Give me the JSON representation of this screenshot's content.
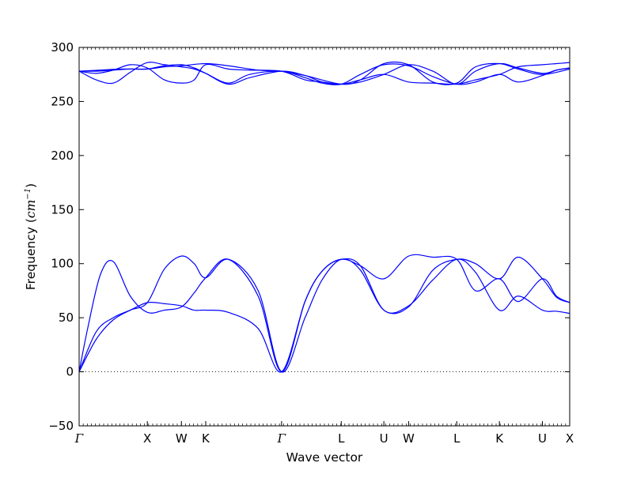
{
  "chart_data": {
    "type": "line",
    "title": "",
    "xlabel": "Wave vector",
    "ylabel": {
      "prefix": "Frequency (",
      "unit_base": "cm",
      "unit_exp": "−1",
      "suffix": ")"
    },
    "ylim": [
      -50,
      300
    ],
    "yticks": [
      -50,
      0,
      50,
      100,
      150,
      200,
      250,
      300
    ],
    "xlim": [
      0,
      11.51
    ],
    "xticks": [
      {
        "label": "Γ",
        "x": 0.0
      },
      {
        "label": "X",
        "x": 1.6
      },
      {
        "label": "W",
        "x": 2.4
      },
      {
        "label": "K",
        "x": 2.97
      },
      {
        "label": "Γ",
        "x": 4.75
      },
      {
        "label": "L",
        "x": 6.15
      },
      {
        "label": "U",
        "x": 7.15
      },
      {
        "label": "W",
        "x": 7.73
      },
      {
        "label": "L",
        "x": 8.86
      },
      {
        "label": "K",
        "x": 9.86
      },
      {
        "label": "U",
        "x": 10.87
      },
      {
        "label": "X",
        "x": 11.51
      }
    ],
    "zero_line": {
      "value": 0,
      "style": "dotted"
    },
    "grid": false,
    "legend": "none",
    "color": "#0000ff",
    "series": [
      {
        "x": [
          0,
          0.4,
          0.8,
          1.2,
          1.6,
          2.0,
          2.4,
          2.7,
          2.97,
          3.5,
          4.2,
          4.75,
          5.3,
          5.7,
          6.15,
          6.6,
          7.15,
          7.73,
          8.3,
          8.86,
          9.3,
          9.86,
          10.3,
          10.87,
          11.2,
          11.51
        ],
        "y": [
          0,
          37,
          50,
          57,
          64,
          63,
          61,
          57,
          57,
          55,
          40,
          0,
          65,
          93,
          104,
          98,
          86,
          107,
          106,
          104,
          75,
          86,
          65,
          86,
          70,
          64
        ]
      },
      {
        "x": [
          0,
          0.2,
          0.5,
          0.8,
          1.2,
          1.6,
          2.0,
          2.4,
          2.7,
          2.97,
          3.5,
          4.2,
          4.75,
          5.3,
          5.7,
          6.15,
          6.6,
          7.15,
          7.73,
          8.3,
          8.86,
          9.3,
          9.86,
          10.3,
          10.87,
          11.2,
          11.51
        ],
        "y": [
          0,
          40,
          90,
          102,
          70,
          55,
          57,
          60,
          73,
          87,
          104,
          70,
          0,
          65,
          93,
          104,
          98,
          57,
          61,
          85,
          104,
          92,
          57,
          70,
          57,
          56,
          54
        ]
      },
      {
        "x": [
          0,
          0.4,
          0.8,
          1.2,
          1.6,
          2.0,
          2.4,
          2.7,
          2.97,
          3.5,
          4.2,
          4.75,
          5.3,
          5.7,
          6.15,
          6.6,
          7.15,
          7.73,
          8.3,
          8.86,
          9.3,
          9.86,
          10.3,
          10.87,
          11.2,
          11.51
        ],
        "y": [
          0,
          30,
          48,
          57,
          64,
          95,
          107,
          100,
          87,
          104,
          75,
          0,
          50,
          85,
          104,
          94,
          57,
          60,
          94,
          104,
          100,
          86,
          106,
          86,
          69,
          64
        ]
      },
      {
        "x": [
          0,
          0.4,
          0.8,
          1.2,
          1.6,
          2.0,
          2.4,
          2.7,
          2.97,
          3.5,
          4.0,
          4.75,
          5.3,
          5.7,
          6.15,
          6.6,
          7.15,
          7.73,
          8.3,
          8.86,
          9.3,
          9.86,
          10.3,
          10.87,
          11.2,
          11.51
        ],
        "y": [
          278,
          278,
          279,
          280,
          280,
          283,
          284,
          281,
          276,
          266,
          272,
          278,
          274,
          268,
          266,
          270,
          275,
          268,
          267,
          266,
          270,
          275,
          282,
          284,
          285,
          286
        ]
      },
      {
        "x": [
          0,
          0.4,
          0.8,
          1.2,
          1.6,
          2.0,
          2.4,
          2.7,
          2.97,
          3.5,
          4.0,
          4.75,
          5.3,
          5.7,
          6.15,
          6.6,
          7.15,
          7.73,
          8.3,
          8.86,
          9.3,
          9.86,
          10.3,
          10.87,
          11.2,
          11.51
        ],
        "y": [
          278,
          270,
          267,
          277,
          286,
          284,
          282,
          280,
          276,
          267,
          275,
          278,
          272,
          267,
          266,
          275,
          284,
          283,
          273,
          266,
          268,
          275,
          268,
          274,
          279,
          281
        ]
      },
      {
        "x": [
          0,
          0.4,
          0.8,
          1.2,
          1.6,
          2.0,
          2.4,
          2.7,
          2.97,
          3.5,
          4.0,
          4.75,
          5.3,
          5.7,
          6.15,
          6.6,
          7.15,
          7.73,
          8.3,
          8.86,
          9.3,
          9.86,
          10.3,
          10.87,
          11.2,
          11.51
        ],
        "y": [
          278,
          276,
          279,
          284,
          281,
          270,
          267,
          270,
          284,
          280,
          279,
          278,
          270,
          268,
          266,
          268,
          275,
          284,
          278,
          266,
          278,
          285,
          281,
          276,
          279,
          281
        ]
      },
      {
        "x": [
          0,
          0.5,
          1.0,
          1.6,
          2.0,
          2.4,
          2.97,
          3.5,
          4.2,
          4.75,
          5.3,
          6.15,
          6.6,
          7.15,
          7.73,
          8.3,
          8.86,
          9.3,
          9.86,
          10.3,
          10.87,
          11.51
        ],
        "y": [
          278,
          279,
          280,
          280,
          282,
          283,
          285,
          283,
          279,
          278,
          274,
          266,
          270,
          285,
          284,
          268,
          267,
          282,
          285,
          280,
          275,
          280
        ]
      }
    ]
  }
}
